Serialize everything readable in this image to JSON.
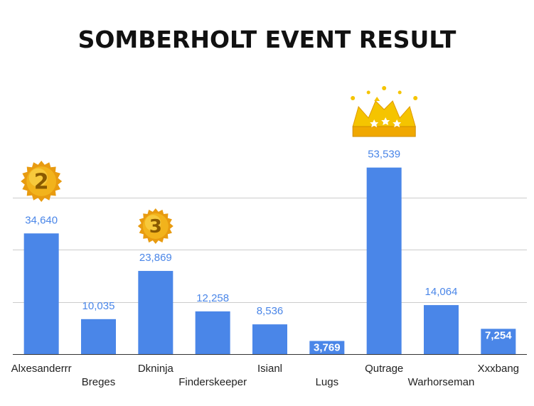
{
  "colors": {
    "bar": "#4a86e8",
    "value_label": "#4a86e8",
    "value_label_inside": "#ffffff",
    "grid": "#cccccc",
    "axis": "#333333",
    "title": "#111111",
    "medal_gold": "#f2b31c",
    "medal_number": "#8a5a00",
    "crown_gold": "#f5c400"
  },
  "badges": {
    "second": "2",
    "third": "3"
  },
  "chart_data": {
    "type": "bar",
    "title": "SOMBERHOLT EVENT RESULT",
    "xlabel": "",
    "ylabel": "",
    "categories": [
      "Alxesanderrr",
      "Breges",
      "Dkninja",
      "Finderskeeper",
      "Isianl",
      "Lugs",
      "Qutrage",
      "Warhorseman",
      "Xxxbang"
    ],
    "values": [
      34640,
      10035,
      23869,
      12258,
      8536,
      3769,
      53539,
      14064,
      7254
    ],
    "value_labels": [
      "34,640",
      "10,035",
      "23,869",
      "12,258",
      "8,536",
      "3,769",
      "53,539",
      "14,064",
      "7,254"
    ],
    "ylim": [
      0,
      60000
    ],
    "gridlines": [
      15000,
      30000,
      45000
    ],
    "grid": true,
    "legend": "none"
  }
}
